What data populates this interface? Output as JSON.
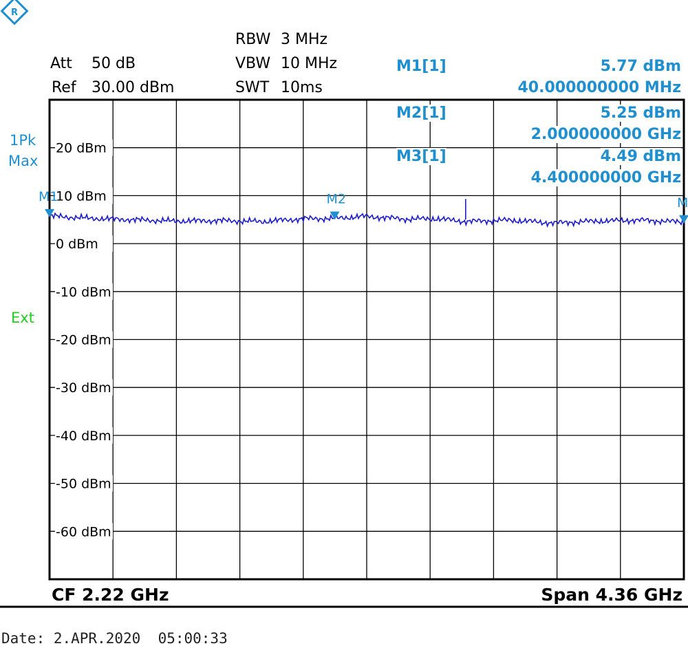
{
  "instrument": {
    "att_label": "Att",
    "att_value": "50 dB",
    "ref_label": "Ref",
    "ref_value": "30.00 dBm",
    "rbw_label": "RBW",
    "rbw_value": "3 MHz",
    "vbw_label": "VBW",
    "vbw_value": "10 MHz",
    "swt_label": "SWT",
    "swt_value": "10ms",
    "trace_mode_1": "1Pk",
    "trace_mode_2": "Max",
    "ext_label": "Ext",
    "logo_icon": "rohde-schwarz-logo-icon"
  },
  "markers": [
    {
      "id": "M1[1]",
      "level": "5.77 dBm",
      "freq": "40.000000000 MHz"
    },
    {
      "id": "M2[1]",
      "level": "5.25 dBm",
      "freq": "2.000000000 GHz"
    },
    {
      "id": "M3[1]",
      "level": "4.49 dBm",
      "freq": "4.400000000 GHz"
    }
  ],
  "footer": {
    "cf": "CF 2.22 GHz",
    "span": "Span 4.36 GHz",
    "date": "Date: 2.APR.2020  05:00:33"
  },
  "colors": {
    "trace": "#1c1cc8",
    "marker": "#1f8fd0",
    "grid": "#000000",
    "ext": "#22cc22"
  },
  "chart_data": {
    "type": "line",
    "x_unit": "GHz",
    "y_unit": "dBm",
    "xlim": [
      0.04,
      4.4
    ],
    "ylim": [
      -70,
      30
    ],
    "y_ticks": [
      20,
      10,
      0,
      -10,
      -20,
      -30,
      -40,
      -50,
      -60
    ],
    "y_tick_labels": [
      "20 dBm",
      "10 dBm",
      "0 dBm",
      "-10 dBm",
      "-20 dBm",
      "-30 dBm",
      "-40 dBm",
      "-50 dBm",
      "-60 dBm"
    ],
    "grid": true,
    "series": [
      {
        "x": [
          0.04,
          0.3,
          0.6,
          0.9,
          1.2,
          1.5,
          1.8,
          2.0,
          2.2,
          2.5,
          2.7,
          2.9,
          3.2,
          3.5,
          3.8,
          4.1,
          4.4
        ],
        "values": [
          5.77,
          5.3,
          5.0,
          4.7,
          4.8,
          4.6,
          5.2,
          5.25,
          5.7,
          5.1,
          5.2,
          4.6,
          4.9,
          4.3,
          4.7,
          4.9,
          4.49
        ]
      }
    ],
    "marker_labels": [
      "M1",
      "M2",
      "M"
    ],
    "marker_points": [
      {
        "x": 0.04,
        "y": 5.77
      },
      {
        "x": 2.0,
        "y": 5.25
      },
      {
        "x": 4.4,
        "y": 4.49
      }
    ]
  }
}
